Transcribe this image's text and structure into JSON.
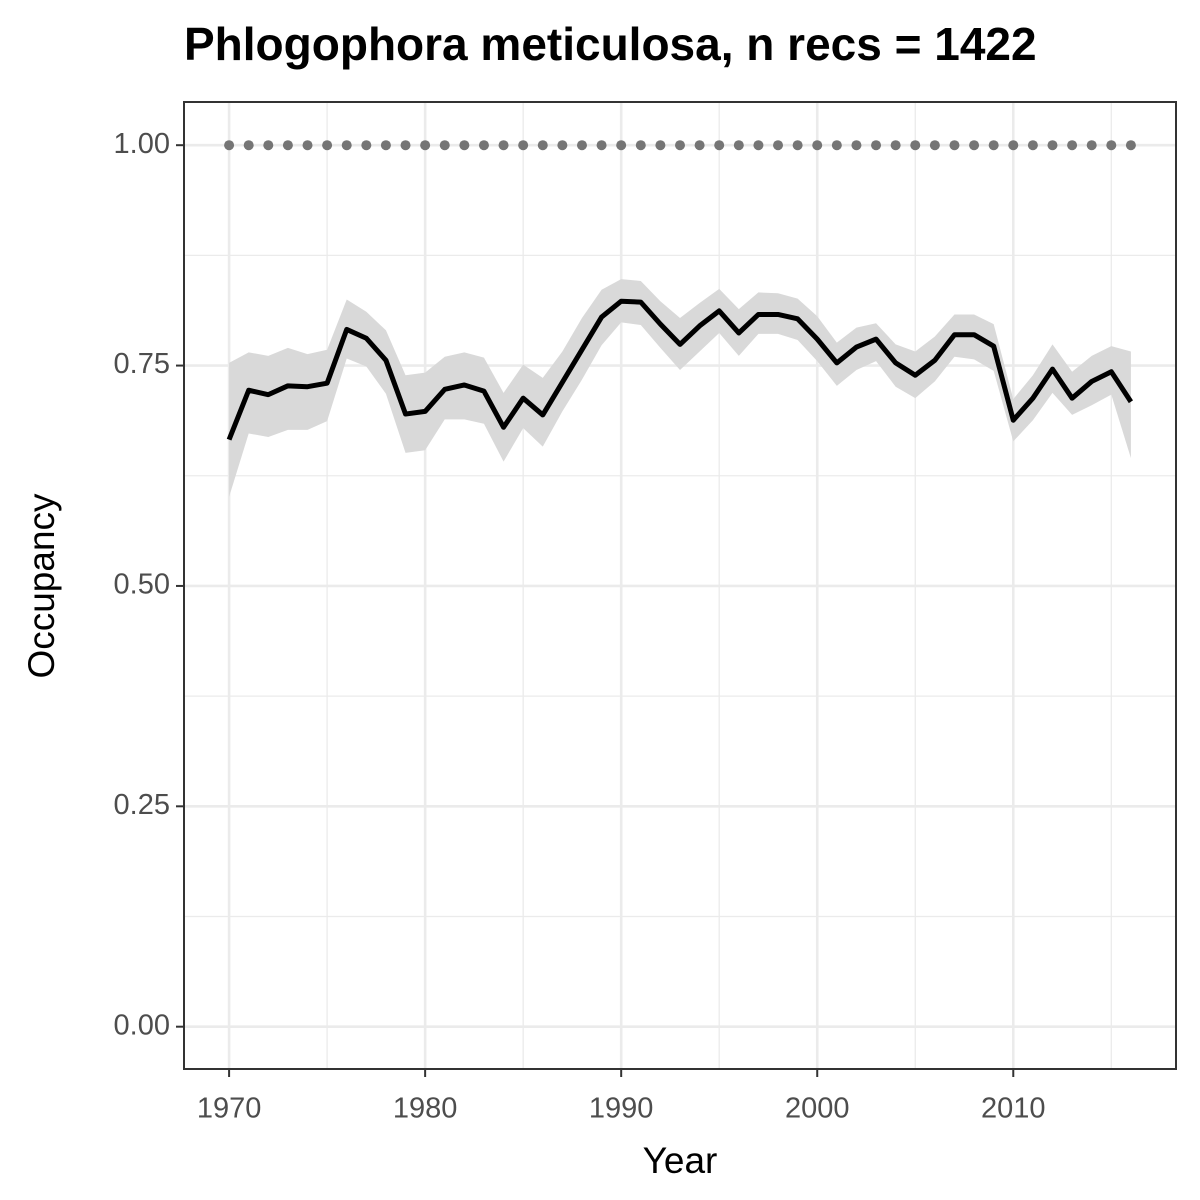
{
  "chart_data": {
    "type": "line",
    "title": "Phlogophora meticulosa, n recs = 1422",
    "x_label": "Year",
    "y_label": "Occupancy",
    "x": [
      1970,
      1971,
      1972,
      1973,
      1974,
      1975,
      1976,
      1977,
      1978,
      1979,
      1980,
      1981,
      1982,
      1983,
      1984,
      1985,
      1986,
      1987,
      1988,
      1989,
      1990,
      1991,
      1992,
      1993,
      1994,
      1995,
      1996,
      1997,
      1998,
      1999,
      2000,
      2001,
      2002,
      2003,
      2004,
      2005,
      2006,
      2007,
      2008,
      2009,
      2010,
      2011,
      2012,
      2013,
      2014,
      2015,
      2016
    ],
    "series": [
      {
        "color": "#000000",
        "band_color": "#d9d9d9",
        "values": [
          0.666,
          0.722,
          0.717,
          0.727,
          0.726,
          0.73,
          0.791,
          0.781,
          0.756,
          0.695,
          0.698,
          0.723,
          0.728,
          0.721,
          0.68,
          0.713,
          0.694,
          0.731,
          0.768,
          0.805,
          0.823,
          0.822,
          0.797,
          0.774,
          0.795,
          0.812,
          0.787,
          0.808,
          0.808,
          0.803,
          0.78,
          0.753,
          0.771,
          0.78,
          0.753,
          0.739,
          0.756,
          0.785,
          0.785,
          0.772,
          0.688,
          0.713,
          0.746,
          0.713,
          0.732,
          0.743,
          0.709
        ],
        "upper": [
          0.753,
          0.765,
          0.761,
          0.77,
          0.763,
          0.768,
          0.825,
          0.811,
          0.79,
          0.739,
          0.742,
          0.76,
          0.765,
          0.759,
          0.719,
          0.751,
          0.736,
          0.766,
          0.804,
          0.836,
          0.848,
          0.846,
          0.823,
          0.804,
          0.821,
          0.837,
          0.814,
          0.833,
          0.832,
          0.826,
          0.806,
          0.776,
          0.793,
          0.798,
          0.774,
          0.766,
          0.783,
          0.808,
          0.808,
          0.797,
          0.712,
          0.739,
          0.774,
          0.743,
          0.761,
          0.772,
          0.766
        ],
        "lower": [
          0.601,
          0.673,
          0.669,
          0.677,
          0.677,
          0.687,
          0.758,
          0.749,
          0.718,
          0.651,
          0.654,
          0.689,
          0.689,
          0.684,
          0.641,
          0.679,
          0.658,
          0.698,
          0.734,
          0.773,
          0.799,
          0.796,
          0.77,
          0.745,
          0.766,
          0.787,
          0.761,
          0.786,
          0.786,
          0.779,
          0.755,
          0.727,
          0.745,
          0.755,
          0.726,
          0.713,
          0.732,
          0.76,
          0.757,
          0.744,
          0.664,
          0.688,
          0.719,
          0.694,
          0.705,
          0.717,
          0.645
        ]
      },
      {
        "color": "#757575",
        "style": "points",
        "values": [
          1,
          1,
          1,
          1,
          1,
          1,
          1,
          1,
          1,
          1,
          1,
          1,
          1,
          1,
          1,
          1,
          1,
          1,
          1,
          1,
          1,
          1,
          1,
          1,
          1,
          1,
          1,
          1,
          1,
          1,
          1,
          1,
          1,
          1,
          1,
          1,
          1,
          1,
          1,
          1,
          1,
          1,
          1,
          1,
          1,
          1,
          1
        ]
      }
    ],
    "xlim": [
      1967.7,
      2018.3
    ],
    "ylim": [
      -0.048,
      1.049
    ],
    "xticks": [
      1970,
      1980,
      1990,
      2000,
      2010
    ],
    "minor_xticks": [
      1975,
      1985,
      1995,
      2005,
      2015
    ],
    "yticks": [
      {
        "value": 0,
        "label": "0.00"
      },
      {
        "value": 0.25,
        "label": "0.25"
      },
      {
        "value": 0.5,
        "label": "0.50"
      },
      {
        "value": 0.75,
        "label": "0.75"
      },
      {
        "value": 1,
        "label": "1.00"
      }
    ],
    "minor_yticks": [
      0.125,
      0.375,
      0.625,
      0.875
    ],
    "grid": true
  }
}
